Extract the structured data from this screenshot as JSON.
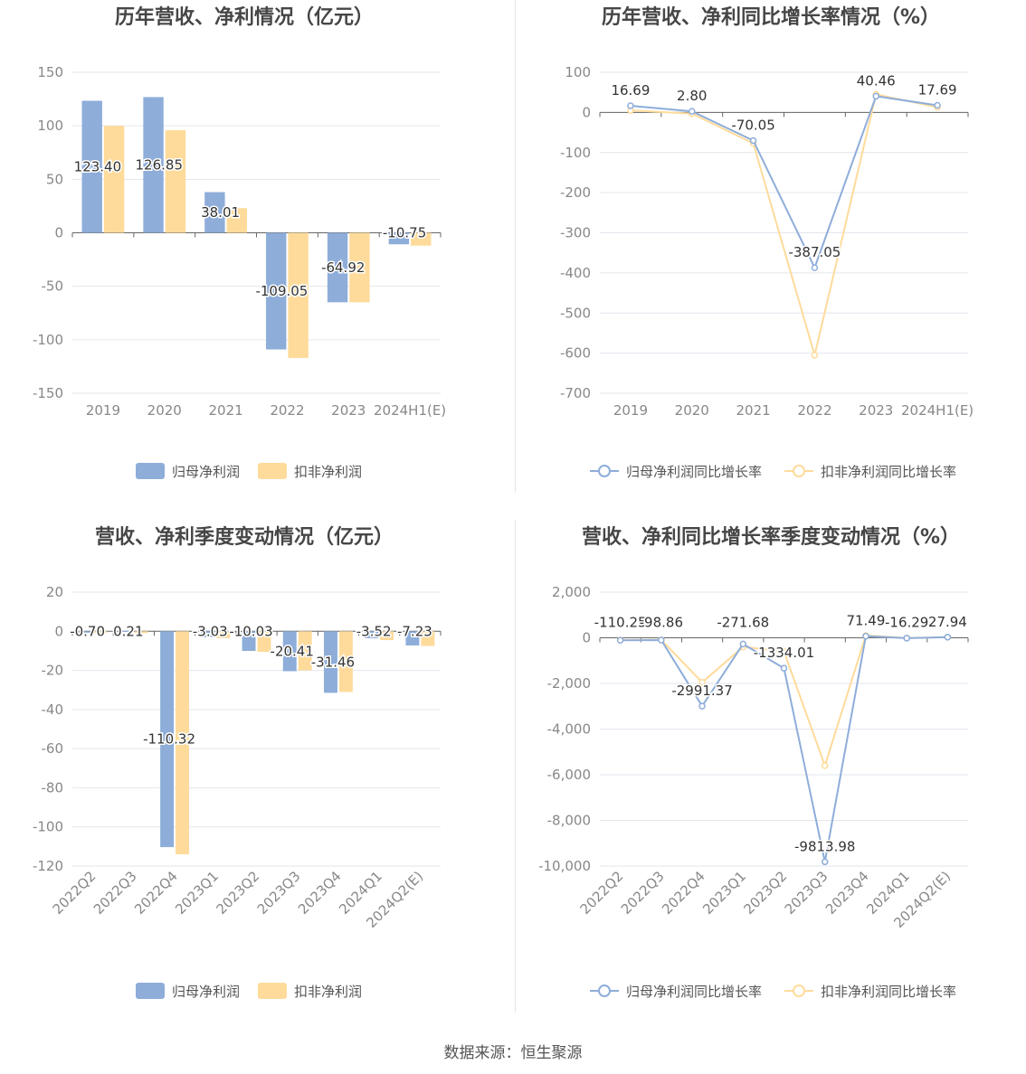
{
  "colors": {
    "blue": "#8eadd9",
    "orange": "#fedb9b",
    "grid": "#e3e6ee",
    "axis": "#666666"
  },
  "source": "数据来源：恒生聚源",
  "chart_data": [
    {
      "type": "bar",
      "title": "历年营收、净利情况（亿元）",
      "categories": [
        "2019",
        "2020",
        "2021",
        "2022",
        "2023",
        "2024H1(E)"
      ],
      "yticks": [
        "150",
        "100",
        "50",
        "0",
        "-50",
        "-100",
        "-150"
      ],
      "ylim": [
        -150,
        150
      ],
      "series": [
        {
          "name": "归母净利润",
          "values": [
            123.4,
            126.85,
            38.01,
            -109.05,
            -64.92,
            -10.75
          ],
          "labels": [
            "123.40",
            "126.85",
            "38.01",
            "-109.05",
            "-64.92",
            "-10.75"
          ]
        },
        {
          "name": "扣非净利润",
          "values": [
            100,
            96,
            23,
            -117,
            -65,
            -12
          ]
        }
      ],
      "legend": "bottom"
    },
    {
      "type": "line",
      "title": "历年营收、净利同比增长率情况（%）",
      "categories": [
        "2019",
        "2020",
        "2021",
        "2022",
        "2023",
        "2024H1(E)"
      ],
      "yticks": [
        "100",
        "0",
        "-100",
        "-200",
        "-300",
        "-400",
        "-500",
        "-600",
        "-700"
      ],
      "ylim": [
        -700,
        100
      ],
      "series": [
        {
          "name": "归母净利润同比增长率",
          "values": [
            16.69,
            2.8,
            -70.05,
            -387.05,
            40.46,
            17.69
          ],
          "labels": [
            "16.69",
            "2.80",
            "-70.05",
            "-387.05",
            "40.46",
            "17.69"
          ]
        },
        {
          "name": "扣非净利润同比增长率",
          "values": [
            5,
            -3,
            -77,
            -605,
            45,
            13
          ]
        }
      ],
      "legend": "bottom"
    },
    {
      "type": "bar",
      "title": "营收、净利季度变动情况（亿元）",
      "categories": [
        "2022Q2",
        "2022Q3",
        "2022Q4",
        "2023Q1",
        "2023Q2",
        "2023Q3",
        "2023Q4",
        "2024Q1",
        "2024Q2(E)"
      ],
      "yticks": [
        "20",
        "0",
        "-20",
        "-40",
        "-60",
        "-80",
        "-100",
        "-120"
      ],
      "ylim": [
        -120,
        20
      ],
      "series": [
        {
          "name": "归母净利润",
          "values": [
            -0.7,
            0.21,
            -110.32,
            -3.03,
            -10.03,
            -20.41,
            -31.46,
            -3.52,
            -7.23
          ],
          "labels": [
            "-0.70",
            "0.21",
            "-110.32",
            "-3.03",
            "-10.03",
            "-20.41",
            "-31.46",
            "-3.52",
            "-7.23"
          ]
        },
        {
          "name": "扣非净利润",
          "values": [
            -0.8,
            -0.9,
            -114,
            -3.5,
            -10.5,
            -20,
            -31,
            -4.5,
            -7.5
          ]
        }
      ],
      "legend": "bottom"
    },
    {
      "type": "line",
      "title": "营收、净利同比增长率季度变动情况（%）",
      "categories": [
        "2022Q2",
        "2022Q3",
        "2022Q4",
        "2023Q1",
        "2023Q2",
        "2023Q3",
        "2023Q4",
        "2024Q1",
        "2024Q2(E)"
      ],
      "yticks": [
        "2,000",
        "0",
        "-2,000",
        "-4,000",
        "-6,000",
        "-8,000",
        "-10,000"
      ],
      "ylim": [
        -10000,
        2000
      ],
      "series": [
        {
          "name": "归母净利润同比增长率",
          "values": [
            -110.25,
            -98.86,
            -2991.37,
            -271.68,
            -1334.01,
            -9813.98,
            71.49,
            -16.29,
            27.94
          ],
          "labels": [
            "-110.25",
            "-98.86",
            "-2991.37",
            "-271.68",
            "-1334.01",
            "-9813.98",
            "71.49",
            "-16.29",
            "27.94"
          ]
        },
        {
          "name": "扣非净利润同比增长率",
          "values": [
            -100,
            -90,
            -1950,
            -400,
            -600,
            -5600,
            100,
            -10,
            30
          ]
        }
      ],
      "legend": "bottom"
    }
  ]
}
